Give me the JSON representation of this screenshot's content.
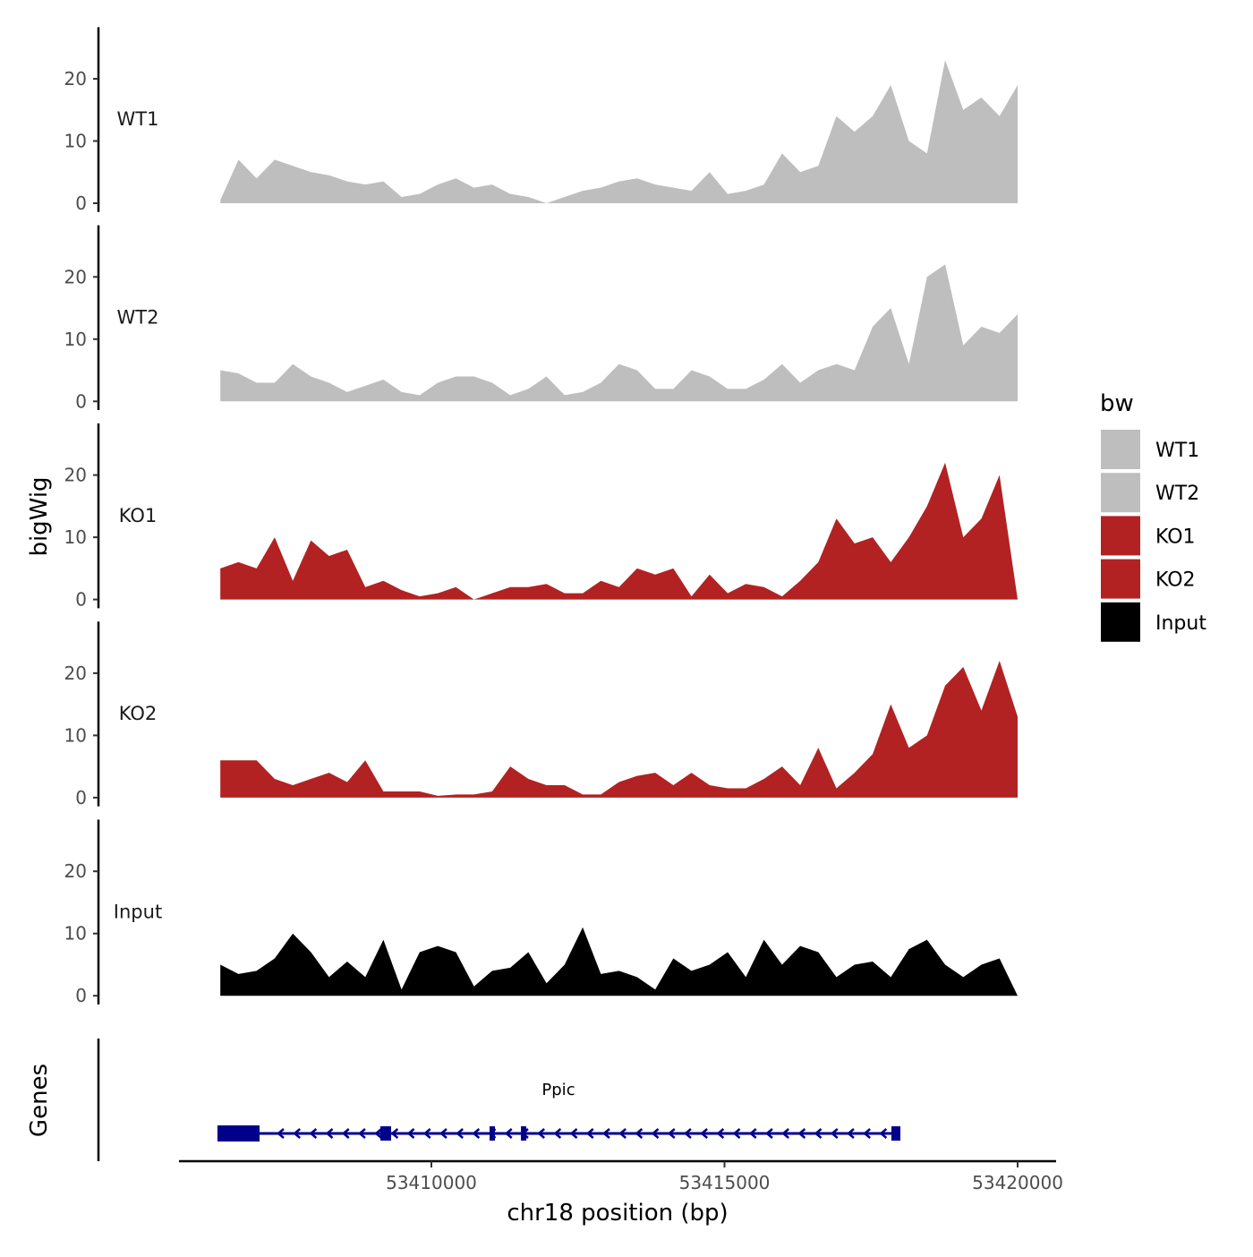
{
  "chart_data": {
    "type": "area",
    "xlabel": "chr18 position (bp)",
    "ylabel": "bigWig",
    "xlim": [
      53405695,
      53420656
    ],
    "ylim": [
      -1.4,
      28.3
    ],
    "x_ticks": [
      53410000,
      53415000,
      53420000
    ],
    "x_tick_labels": [
      "53410000",
      "53415000",
      "53420000"
    ],
    "y_ticks": [
      0,
      10,
      20
    ],
    "y_tick_labels": [
      "0",
      "10",
      "20"
    ],
    "x_start": 53406400,
    "x_end": 53420000,
    "legend": {
      "title": "bw",
      "position": "right",
      "entries": [
        "WT1",
        "WT2",
        "KO1",
        "KO2",
        "Input"
      ]
    },
    "series": [
      {
        "name": "WT1",
        "color": "#BEBEBE",
        "values": [
          0.5,
          7,
          4,
          7,
          6,
          5,
          4.5,
          3.5,
          3,
          3.5,
          1,
          1.5,
          3,
          4,
          2.5,
          3,
          1.5,
          1,
          0,
          1,
          2,
          2.5,
          3.5,
          4,
          3,
          2.5,
          2,
          5,
          1.5,
          2,
          3,
          8,
          5,
          6,
          14,
          11.5,
          14,
          19,
          10,
          8,
          23,
          15,
          17,
          14,
          19
        ]
      },
      {
        "name": "WT2",
        "color": "#BEBEBE",
        "values": [
          5,
          4.5,
          3,
          3,
          6,
          4,
          3,
          1.5,
          2.5,
          3.5,
          1.5,
          1,
          3,
          4,
          4,
          3,
          1,
          2,
          4,
          1,
          1.5,
          3,
          6,
          5,
          2,
          2,
          5,
          4,
          2,
          2,
          3.5,
          6,
          3,
          5,
          6,
          5,
          12,
          15,
          6,
          20,
          22,
          9,
          12,
          11,
          14
        ]
      },
      {
        "name": "KO1",
        "color": "#B22222",
        "values": [
          5,
          6,
          5,
          10,
          3,
          9.5,
          7,
          8,
          2,
          3,
          1.5,
          0.5,
          1,
          2,
          0,
          1,
          2,
          2,
          2.5,
          1,
          1,
          3,
          2,
          5,
          4,
          5,
          0.5,
          4,
          1,
          2.5,
          2,
          0.5,
          3,
          6,
          13,
          9,
          10,
          6,
          10,
          15,
          22,
          10,
          13,
          20,
          0
        ]
      },
      {
        "name": "KO2",
        "color": "#B22222",
        "values": [
          6,
          6,
          6,
          3,
          2,
          3,
          4,
          2.5,
          6,
          1,
          1,
          1,
          0.3,
          0.5,
          0.5,
          1,
          5,
          3,
          2,
          2,
          0.5,
          0.5,
          2.5,
          3.5,
          4,
          2,
          4,
          2,
          1.5,
          1.5,
          3,
          5,
          2,
          8,
          1.5,
          4,
          7,
          15,
          8,
          10,
          18,
          21,
          14,
          22,
          13
        ]
      },
      {
        "name": "Input",
        "color": "#000000",
        "values": [
          5,
          3.5,
          4,
          6,
          10,
          7,
          3,
          5.5,
          3,
          9,
          1,
          7,
          8,
          7,
          1.5,
          4,
          4.5,
          7,
          2,
          5,
          11,
          3.5,
          4,
          3,
          1,
          6,
          4,
          5,
          7,
          3,
          9,
          5,
          8,
          7,
          3,
          5,
          5.5,
          3,
          7.5,
          9,
          5,
          3,
          5,
          6,
          0
        ]
      }
    ],
    "genes_panel": {
      "ylabel": "Genes",
      "color": "#00008B",
      "gene": {
        "name": "Ppic",
        "start": 53406351,
        "end": 53418000,
        "strand": "-",
        "exons": [
          [
            53406351,
            53407069
          ],
          [
            53409130,
            53409313
          ],
          [
            53410992,
            53411084
          ],
          [
            53411527,
            53411618
          ],
          [
            53417847,
            53418000
          ]
        ]
      }
    }
  }
}
